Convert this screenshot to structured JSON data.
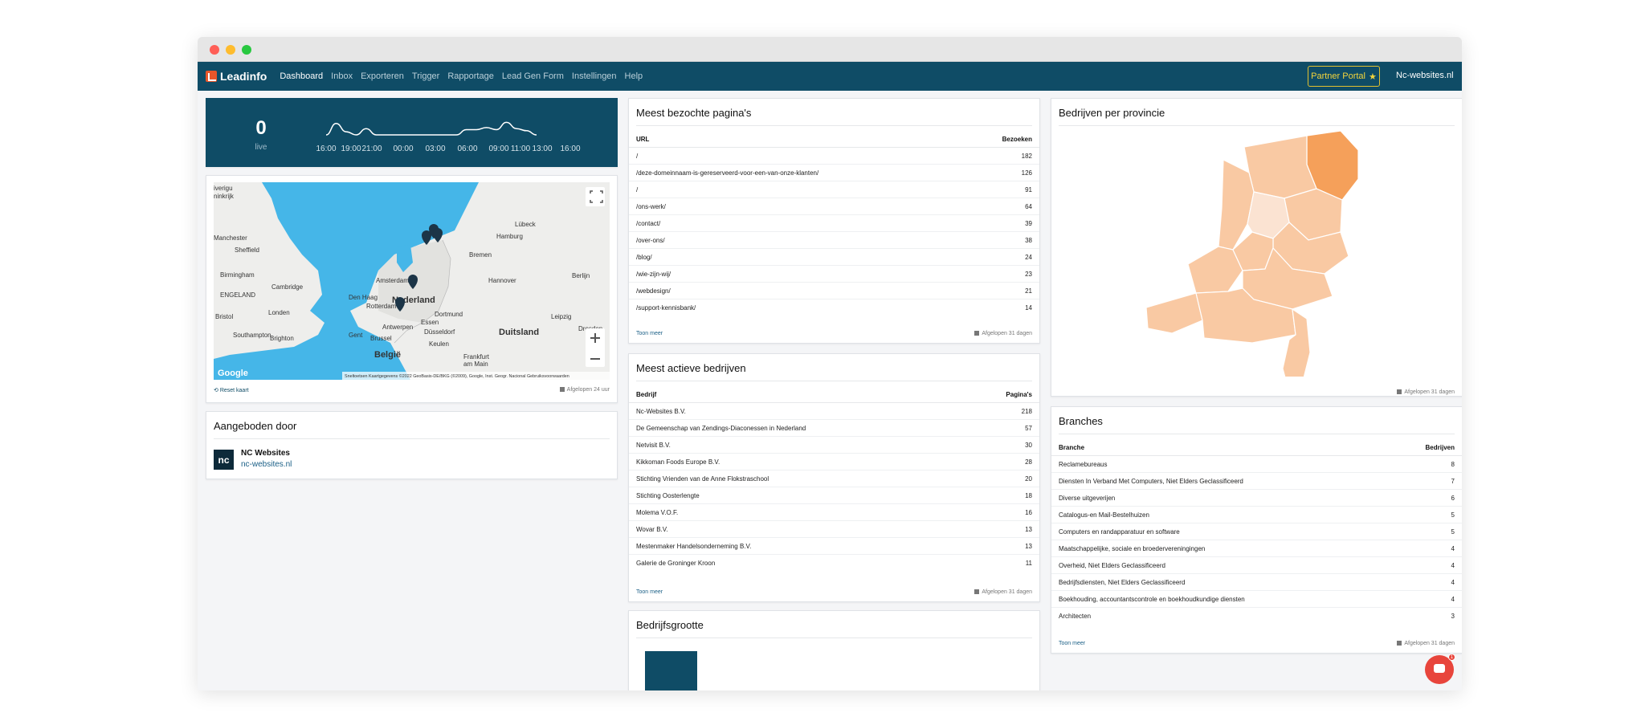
{
  "nav": {
    "brand": "Leadinfo",
    "links": [
      "Dashboard",
      "Inbox",
      "Exporteren",
      "Trigger",
      "Rapportage",
      "Lead Gen Form",
      "Instellingen",
      "Help"
    ],
    "partner_label": "Partner Portal",
    "site": "Nc-websites.nl"
  },
  "live": {
    "value": "0",
    "label": "live",
    "ticks": [
      "16:00",
      "19:00",
      "21:00",
      "00:00",
      "03:00",
      "06:00",
      "09:00",
      "11:00",
      "13:00",
      "16:00"
    ],
    "series": [
      0,
      0.55,
      0.15,
      0,
      0.3,
      0,
      0,
      0,
      0,
      0,
      0,
      0,
      0,
      0,
      0.25,
      0.25,
      0.35,
      0.25,
      0.6,
      0.3,
      0.2,
      0
    ]
  },
  "map": {
    "labels": {
      "ireland_partial": "iverigu",
      "ireland_partial2": "ninkrijk",
      "manchester": "Manchester",
      "sheffield": "Sheffield",
      "birmingham": "Birmingham",
      "cambridge": "Cambridge",
      "england": "ENGELAND",
      "london": "Londen",
      "bristol": "Bristol",
      "southampton": "Southampton",
      "brighton": "Brighton",
      "amsterdam": "Amsterdam",
      "denhaag": "Den Haag",
      "rotterdam": "Rotterdam",
      "nederland": "Nederland",
      "antwerpen": "Antwerpen",
      "gent": "Gent",
      "brussel": "Brussel",
      "belgie": "België",
      "bremen": "Bremen",
      "hamburg": "Hamburg",
      "lubeck": "Lübeck",
      "hannover": "Hannover",
      "berlijn": "Berlijn",
      "dortmund": "Dortmund",
      "essen": "Essen",
      "dusseldorf": "Düsseldorf",
      "keulen": "Keulen",
      "duitsland": "Duitsland",
      "leipzig": "Leipzig",
      "dresden": "Dresden",
      "frankfurt": "Frankfurt",
      "frankfurt2": "am Main",
      "google": "Google",
      "attribution": "Sneltoetsen   Kaartgegevens ©2022 GeoBasis-DE/BKG (©2009), Google, Inst. Geogr. Nacional   Gebruiksvoorwaarden"
    },
    "reset": "Reset kaart",
    "period": "Afgelopen 24 uur"
  },
  "offer": {
    "title": "Aangeboden door",
    "logo": "nc",
    "name": "NC Websites",
    "url": "nc-websites.nl"
  },
  "pages": {
    "title": "Meest bezochte pagina's",
    "col_url": "URL",
    "col_visits": "Bezoeken",
    "rows": [
      {
        "url": "/",
        "visits": "182"
      },
      {
        "url": "/deze-domeinnaam-is-gereserveerd-voor-een-van-onze-klanten/",
        "visits": "126"
      },
      {
        "url": "/",
        "visits": "91"
      },
      {
        "url": "/ons-werk/",
        "visits": "64"
      },
      {
        "url": "/contact/",
        "visits": "39"
      },
      {
        "url": "/over-ons/",
        "visits": "38"
      },
      {
        "url": "/blog/",
        "visits": "24"
      },
      {
        "url": "/wie-zijn-wij/",
        "visits": "23"
      },
      {
        "url": "/webdesign/",
        "visits": "21"
      },
      {
        "url": "/support-kennisbank/",
        "visits": "14"
      }
    ],
    "more": "Toon meer",
    "period": "Afgelopen 31 dagen"
  },
  "companies": {
    "title": "Meest actieve bedrijven",
    "col_company": "Bedrijf",
    "col_pages": "Pagina's",
    "rows": [
      {
        "name": "Nc-Websites B.V.",
        "pages": "218"
      },
      {
        "name": "De Gemeenschap van Zendings-Diaconessen in Nederland",
        "pages": "57"
      },
      {
        "name": "Netvisit B.V.",
        "pages": "30"
      },
      {
        "name": "Kikkoman Foods Europe B.V.",
        "pages": "28"
      },
      {
        "name": "Stichting Vrienden van de Anne Flokstraschool",
        "pages": "20"
      },
      {
        "name": "Stichting Oosterlengte",
        "pages": "18"
      },
      {
        "name": "Molema V.O.F.",
        "pages": "16"
      },
      {
        "name": "Wovar B.V.",
        "pages": "13"
      },
      {
        "name": "Mestenmaker Handelsonderneming B.V.",
        "pages": "13"
      },
      {
        "name": "Galerie de Groninger Kroon",
        "pages": "11"
      }
    ],
    "more": "Toon meer",
    "period": "Afgelopen 31 dagen"
  },
  "size": {
    "title": "Bedrijfsgrootte"
  },
  "provinces": {
    "title": "Bedrijven per provincie",
    "period": "Afgelopen 31 dagen",
    "colors": {
      "high": "#f5a05a",
      "mid": "#f9c9a3",
      "low": "#fbe3d2"
    }
  },
  "branches": {
    "title": "Branches",
    "col_branch": "Branche",
    "col_companies": "Bedrijven",
    "rows": [
      {
        "name": "Reclamebureaus",
        "count": "8"
      },
      {
        "name": "Diensten In Verband Met Computers, Niet Elders Geclassificeerd",
        "count": "7"
      },
      {
        "name": "Diverse uitgeverijen",
        "count": "6"
      },
      {
        "name": "Catalogus-en Mail-Bestelhuizen",
        "count": "5"
      },
      {
        "name": "Computers en randapparatuur en software",
        "count": "5"
      },
      {
        "name": "Maatschappelijke, sociale en broedervereningingen",
        "count": "4"
      },
      {
        "name": "Overheid, Niet Elders Geclassificeerd",
        "count": "4"
      },
      {
        "name": "Bedrijfsdiensten, Niet Elders Geclassificeerd",
        "count": "4"
      },
      {
        "name": "Boekhouding, accountantscontrole en boekhoudkundige diensten",
        "count": "4"
      },
      {
        "name": "Architecten",
        "count": "3"
      }
    ],
    "more": "Toon meer",
    "period": "Afgelopen 31 dagen"
  },
  "chat": {
    "badge": "1"
  }
}
